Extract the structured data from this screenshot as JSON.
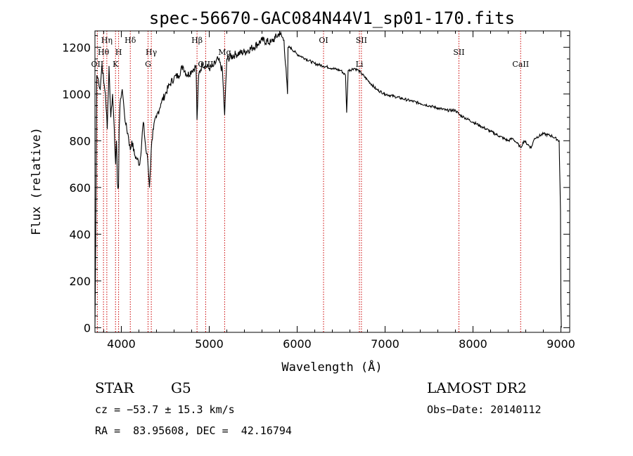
{
  "chart_data": {
    "type": "line",
    "title": "spec-56670-GAC084N44V1_sp01-170.fits",
    "xlabel": "Wavelength (Å)",
    "ylabel": "Flux (relative)",
    "xlim": [
      3700,
      9100
    ],
    "ylim": [
      -20,
      1270
    ],
    "xticks": [
      4000,
      5000,
      6000,
      7000,
      8000,
      9000
    ],
    "yticks": [
      0,
      200,
      400,
      600,
      800,
      1000,
      1200
    ],
    "grid": false,
    "series": [
      {
        "x": [
          3700,
          3705,
          3720,
          3740,
          3760,
          3780,
          3800,
          3820,
          3840,
          3860,
          3880,
          3900,
          3920,
          3935,
          3945,
          3955,
          3968,
          3975,
          3990,
          4010,
          4030,
          4050,
          4080,
          4102,
          4120,
          4150,
          4180,
          4210,
          4250,
          4280,
          4300,
          4320,
          4340,
          4360,
          4400,
          4450,
          4500,
          4550,
          4600,
          4650,
          4700,
          4750,
          4800,
          4850,
          4861,
          4880,
          4920,
          5000,
          5050,
          5100,
          5150,
          5175,
          5200,
          5300,
          5400,
          5500,
          5600,
          5700,
          5750,
          5800,
          5850,
          5890,
          5896,
          5920,
          6000,
          6100,
          6200,
          6300,
          6400,
          6500,
          6550,
          6563,
          6580,
          6650,
          6700,
          6800,
          6900,
          7000,
          7100,
          7200,
          7300,
          7400,
          7500,
          7600,
          7700,
          7800,
          7850,
          7900,
          8000,
          8100,
          8200,
          8300,
          8400,
          8450,
          8500,
          8542,
          8580,
          8662,
          8700,
          8800,
          8900,
          8980,
          8995,
          9000,
          9005
        ],
        "y": [
          0,
          200,
          1080,
          1060,
          1020,
          1130,
          1050,
          1000,
          850,
          1120,
          900,
          1000,
          850,
          700,
          800,
          620,
          600,
          850,
          980,
          1020,
          940,
          870,
          820,
          760,
          800,
          740,
          720,
          700,
          880,
          760,
          720,
          600,
          760,
          850,
          900,
          960,
          1000,
          1040,
          1070,
          1080,
          1120,
          1080,
          1100,
          1120,
          890,
          1080,
          1130,
          1110,
          1120,
          1150,
          1100,
          910,
          1150,
          1170,
          1180,
          1200,
          1230,
          1220,
          1240,
          1260,
          1230,
          1000,
          1200,
          1200,
          1170,
          1150,
          1130,
          1120,
          1110,
          1100,
          1080,
          920,
          1100,
          1110,
          1100,
          1060,
          1020,
          1000,
          990,
          980,
          970,
          960,
          950,
          940,
          930,
          930,
          910,
          900,
          880,
          860,
          840,
          820,
          800,
          810,
          790,
          770,
          800,
          770,
          810,
          830,
          820,
          800,
          500,
          100,
          0
        ]
      }
    ],
    "lines": [
      {
        "label": "OII",
        "x": 3727,
        "row": 3,
        "color": "#cc0000"
      },
      {
        "label": "Hθ",
        "x": 3797,
        "row": 2,
        "color": "#cc0000"
      },
      {
        "label": "Hη",
        "x": 3835,
        "row": 1,
        "color": "#cc0000"
      },
      {
        "label": "K",
        "x": 3934,
        "row": 3,
        "color": "#cc0000"
      },
      {
        "label": "H",
        "x": 3969,
        "row": 2,
        "color": "#cc0000"
      },
      {
        "label": "Hδ",
        "x": 4102,
        "row": 1,
        "color": "#cc0000"
      },
      {
        "label": "G",
        "x": 4304,
        "row": 3,
        "color": "#cc0000"
      },
      {
        "label": "Hγ",
        "x": 4341,
        "row": 2,
        "color": "#cc0000"
      },
      {
        "label": "Hβ",
        "x": 4861,
        "row": 1,
        "color": "#cc0000"
      },
      {
        "label": "OIII",
        "x": 4959,
        "row": 3,
        "color": "#cc0000"
      },
      {
        "label": "Mg",
        "x": 5175,
        "row": 2,
        "color": "#cc0000"
      },
      {
        "label": "OI",
        "x": 6300,
        "row": 1,
        "color": "#cc0000"
      },
      {
        "label": "Li",
        "x": 6708,
        "row": 3,
        "color": "#cc0000"
      },
      {
        "label": "SII",
        "x": 6731,
        "row": 1,
        "color": "#cc0000"
      },
      {
        "label": "SII",
        "x": 7840,
        "row": 2,
        "color": "#cc0000"
      },
      {
        "label": "CaII",
        "x": 8542,
        "row": 3,
        "color": "#cc0000"
      }
    ]
  },
  "info": {
    "class_label": "STAR",
    "subclass": "G5",
    "survey": "LAMOST DR2",
    "cz": "cz = −53.7 ± 15.3 km/s",
    "obs_date": "Obs−Date: 20140112",
    "coords": "RA =  83.95608, DEC =  42.16794"
  }
}
